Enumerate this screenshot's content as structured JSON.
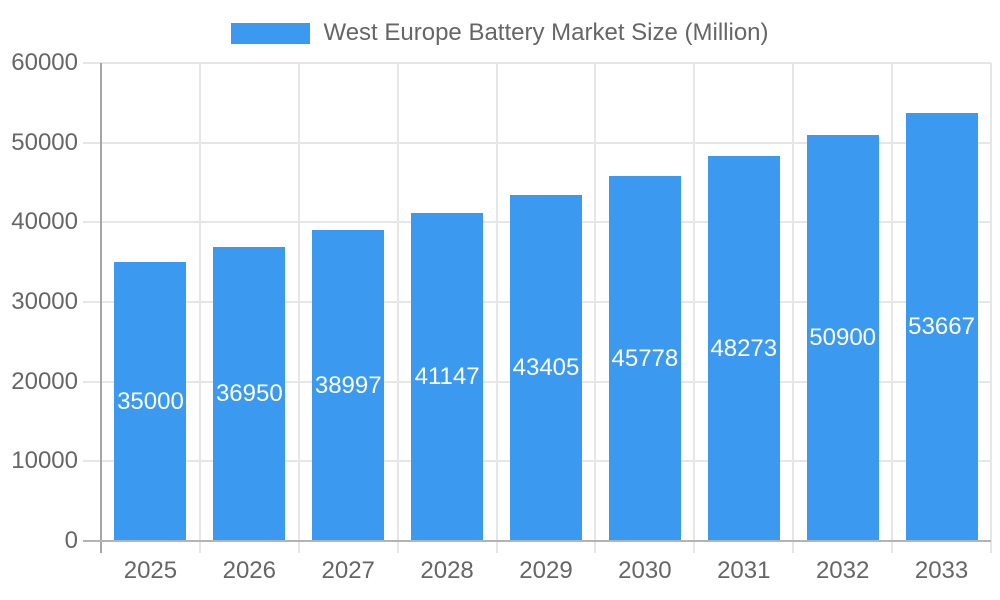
{
  "legend": {
    "label": "West Europe Battery Market Size (Million)"
  },
  "colors": {
    "bar": "#3b99f0",
    "grid": "#e6e6e6",
    "axis_line": "#a6a6a6",
    "zero_line": "#b3b3b3",
    "tick_text": "#666666",
    "legend_text": "#666666",
    "value_text": "#ffffff",
    "background": "#ffffff"
  },
  "chart_data": {
    "type": "bar",
    "title": "West Europe Battery Market Size (Million)",
    "categories": [
      "2025",
      "2026",
      "2027",
      "2028",
      "2029",
      "2030",
      "2031",
      "2032",
      "2033"
    ],
    "values": [
      35000,
      36950,
      38997,
      41147,
      43405,
      45778,
      48273,
      50900,
      53667
    ],
    "yticks": [
      0,
      10000,
      20000,
      30000,
      40000,
      50000,
      60000
    ],
    "ylim": [
      0,
      60000
    ],
    "xlabel": "",
    "ylabel": "",
    "grid": true,
    "legend_position": "top",
    "value_label_position": "inside-center"
  }
}
